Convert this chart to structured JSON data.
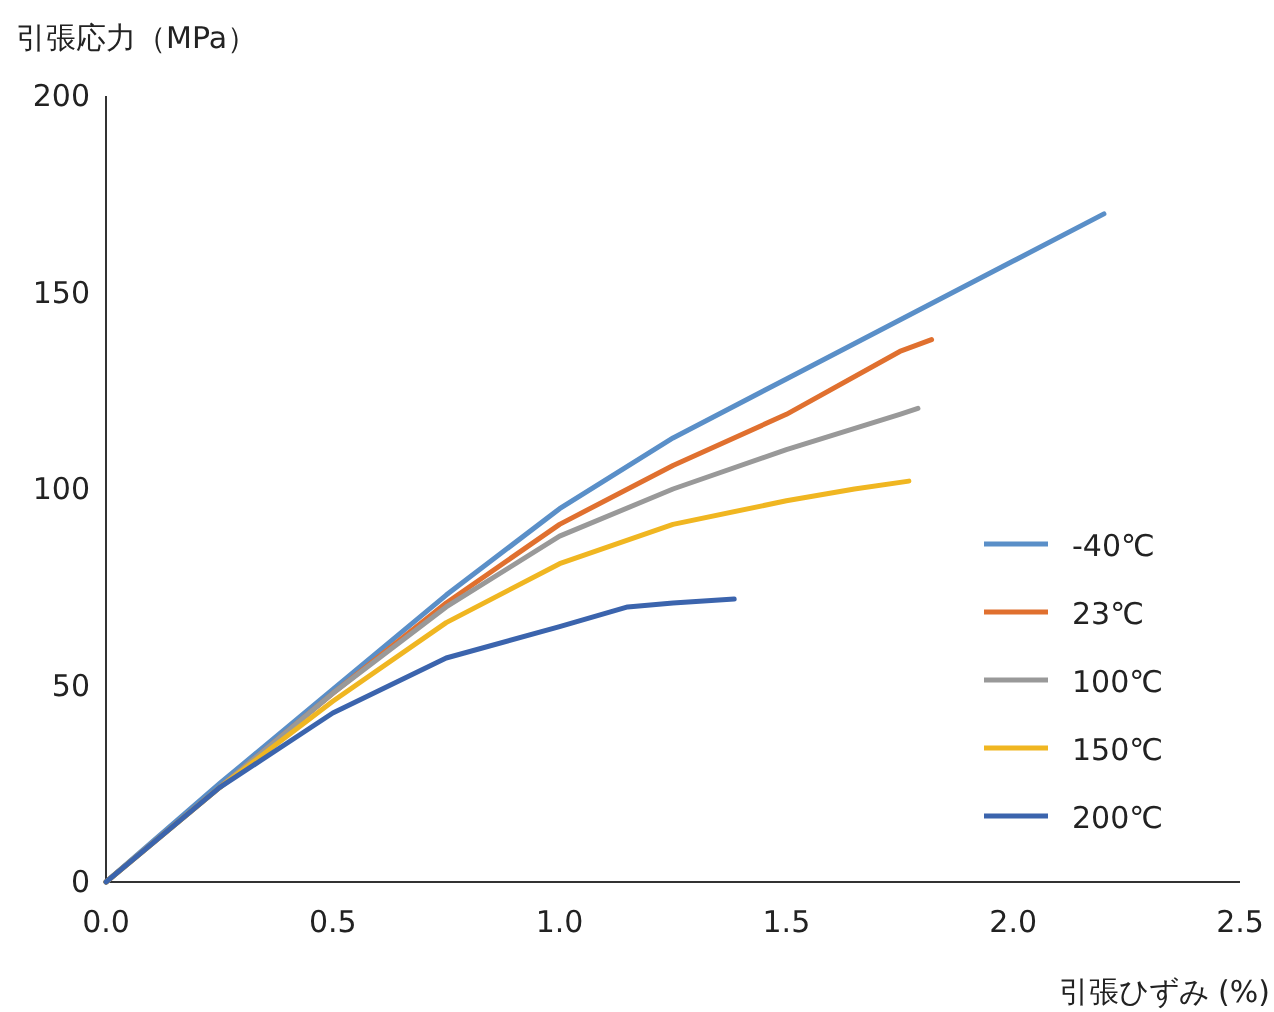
{
  "chart_data": {
    "type": "line",
    "xlabel": "引張ひずみ (%)",
    "ylabel": "引張応力（MPa）",
    "xlim": [
      0,
      2.5
    ],
    "xticks": [
      {
        "value": 0,
        "label": "0.0"
      },
      {
        "value": 0.5,
        "label": "0.5"
      },
      {
        "value": 1,
        "label": "1.0"
      },
      {
        "value": 1.5,
        "label": "1.5"
      },
      {
        "value": 2,
        "label": "2.0"
      },
      {
        "value": 2.5,
        "label": "2.5"
      }
    ],
    "ylim": [
      0,
      200
    ],
    "yticks": [
      0,
      50,
      100,
      150,
      200
    ],
    "grid": false,
    "legend": "right",
    "marker": "none",
    "line_style": "solid",
    "series": [
      {
        "name": "-40℃",
        "color": "#5a8fc8",
        "x": [
          0,
          0.25,
          0.5,
          0.75,
          1.0,
          1.25,
          1.5,
          1.75,
          2.0,
          2.2
        ],
        "values": [
          0,
          25,
          49,
          73,
          95,
          113,
          128,
          143,
          158,
          170
        ]
      },
      {
        "name": "23℃",
        "color": "#e0702f",
        "x": [
          0,
          0.25,
          0.5,
          0.75,
          1.0,
          1.25,
          1.5,
          1.75,
          1.82
        ],
        "values": [
          0,
          24,
          48,
          71,
          91,
          106,
          119,
          135,
          138
        ]
      },
      {
        "name": "100℃",
        "color": "#999999",
        "x": [
          0,
          0.25,
          0.5,
          0.75,
          1.0,
          1.25,
          1.5,
          1.75,
          1.79
        ],
        "values": [
          0,
          24,
          48,
          70,
          88,
          100,
          110,
          119,
          120.5
        ]
      },
      {
        "name": "150℃",
        "color": "#f0b621",
        "x": [
          0,
          0.25,
          0.5,
          0.75,
          1.0,
          1.25,
          1.5,
          1.65,
          1.77
        ],
        "values": [
          0,
          24,
          46,
          66,
          81,
          91,
          97,
          100,
          102
        ]
      },
      {
        "name": "200℃",
        "color": "#3b64ad",
        "x": [
          0,
          0.25,
          0.5,
          0.75,
          1.0,
          1.15,
          1.25,
          1.385
        ],
        "values": [
          0,
          24,
          43,
          57,
          65,
          70,
          71,
          72
        ]
      }
    ]
  }
}
